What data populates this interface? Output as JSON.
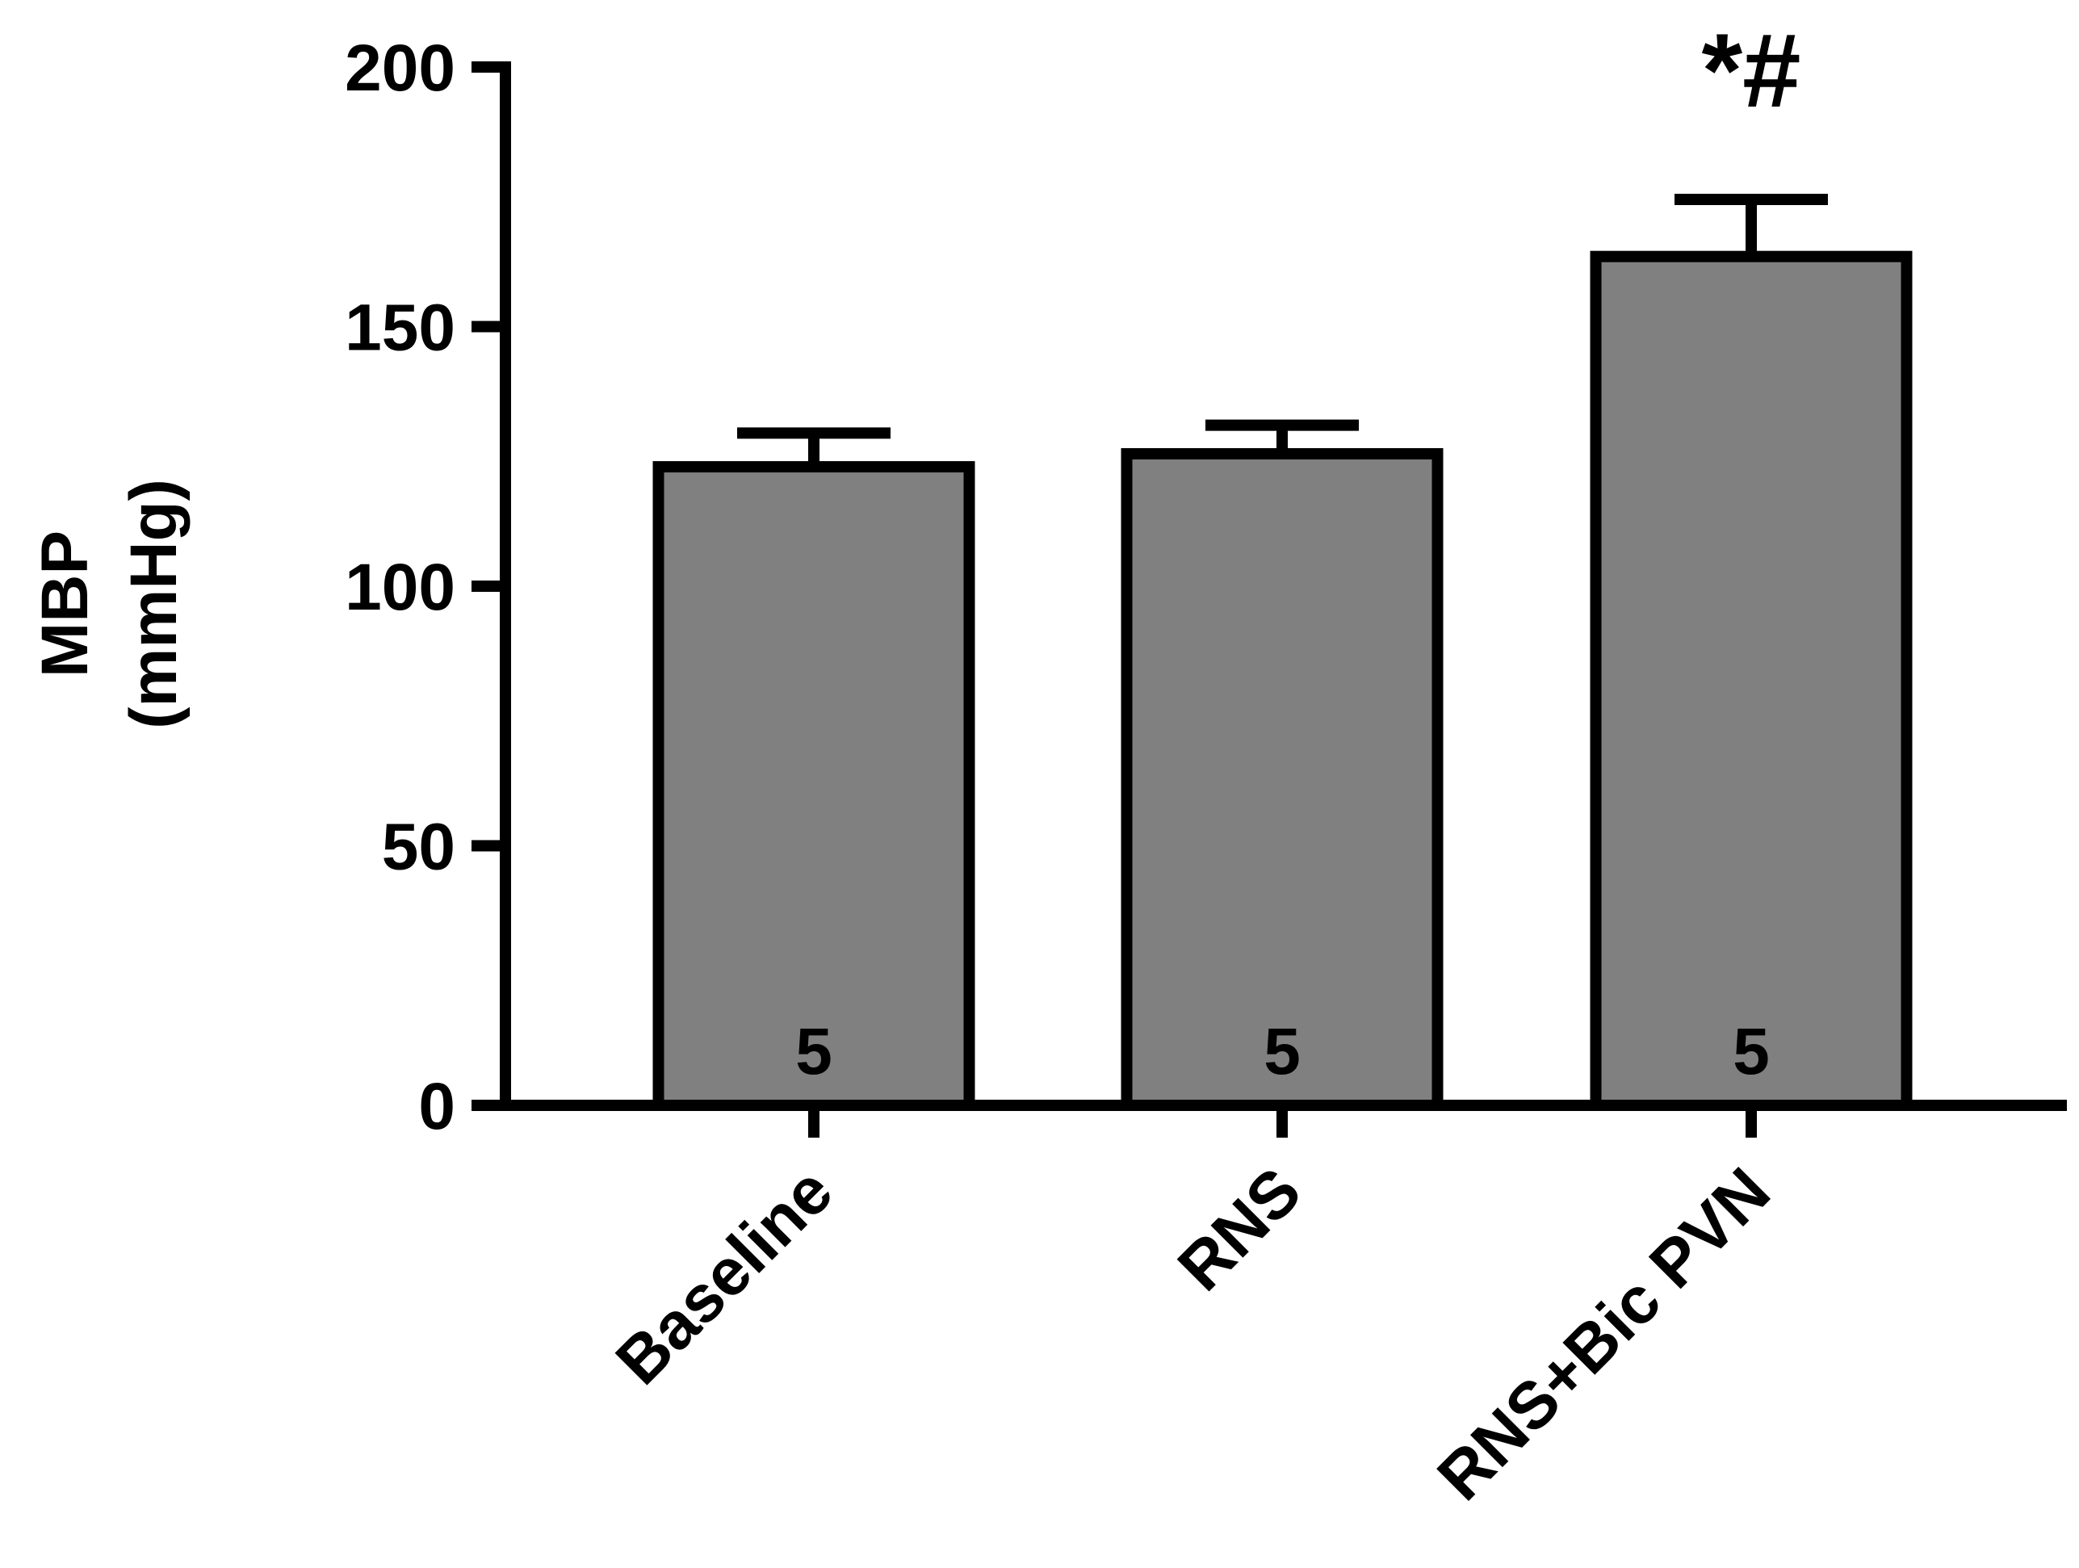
{
  "chart_data": {
    "type": "bar",
    "categories": [
      "Baseline",
      "RNS",
      "RNS+Bic PVN"
    ],
    "values": [
      123,
      125.5,
      163.5
    ],
    "errors": [
      6.5,
      5.5,
      11
    ],
    "n_labels": [
      "5",
      "5",
      "5"
    ],
    "annotations": [
      "",
      "",
      "*#"
    ],
    "ylabel_line1": "MBP",
    "ylabel_line2": "(mmHg)",
    "ylim": [
      0,
      200
    ],
    "yticks": [
      "0",
      "50",
      "100",
      "150",
      "200"
    ],
    "grid": false,
    "legend": "none",
    "colors": {
      "bar_fill": "#808080",
      "bar_stroke": "#000000",
      "axis": "#000000"
    }
  }
}
